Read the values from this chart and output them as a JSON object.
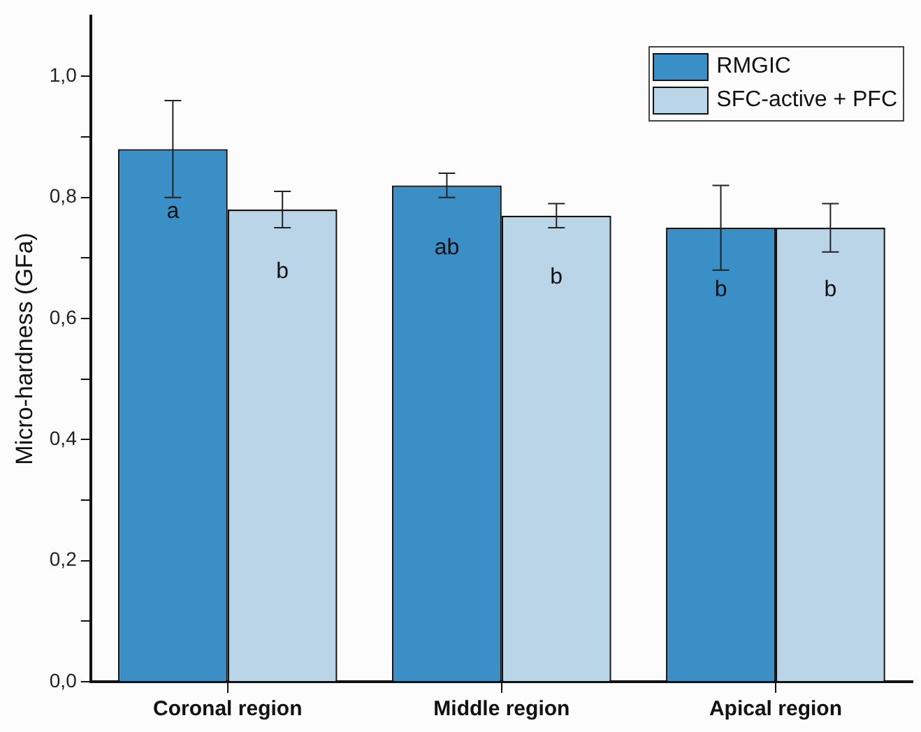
{
  "chart_data": {
    "type": "bar",
    "ylabel": "Micro-hardness (GFa)",
    "categories": [
      "Coronal region",
      "Middle region",
      "Apical region"
    ],
    "series": [
      {
        "name": "RMGIC",
        "color": "#3a8fc6",
        "values": [
          0.88,
          0.82,
          0.75
        ],
        "errors": [
          0.08,
          0.02,
          0.07
        ],
        "value_labels": [
          "a",
          "ab",
          "b"
        ]
      },
      {
        "name": "SFC-active + PFC",
        "color": "#bad5e8",
        "values": [
          0.78,
          0.77,
          0.75
        ],
        "errors": [
          0.03,
          0.02,
          0.04
        ],
        "value_labels": [
          "b",
          "b",
          "b"
        ]
      }
    ],
    "ylim": [
      0,
      1.1
    ],
    "yticks": [
      {
        "value": 0,
        "label": "0,0"
      },
      {
        "value": 0.1,
        "label": null
      },
      {
        "value": 0.2,
        "label": "0,2"
      },
      {
        "value": 0.3,
        "label": null
      },
      {
        "value": 0.4,
        "label": "0,4"
      },
      {
        "value": 0.5,
        "label": null
      },
      {
        "value": 0.6,
        "label": "0,6"
      },
      {
        "value": 0.7,
        "label": null
      },
      {
        "value": 0.8,
        "label": "0,8"
      },
      {
        "value": 0.9,
        "label": null
      },
      {
        "value": 1.0,
        "label": "1,0"
      }
    ],
    "grid": false,
    "legend": "top right"
  }
}
